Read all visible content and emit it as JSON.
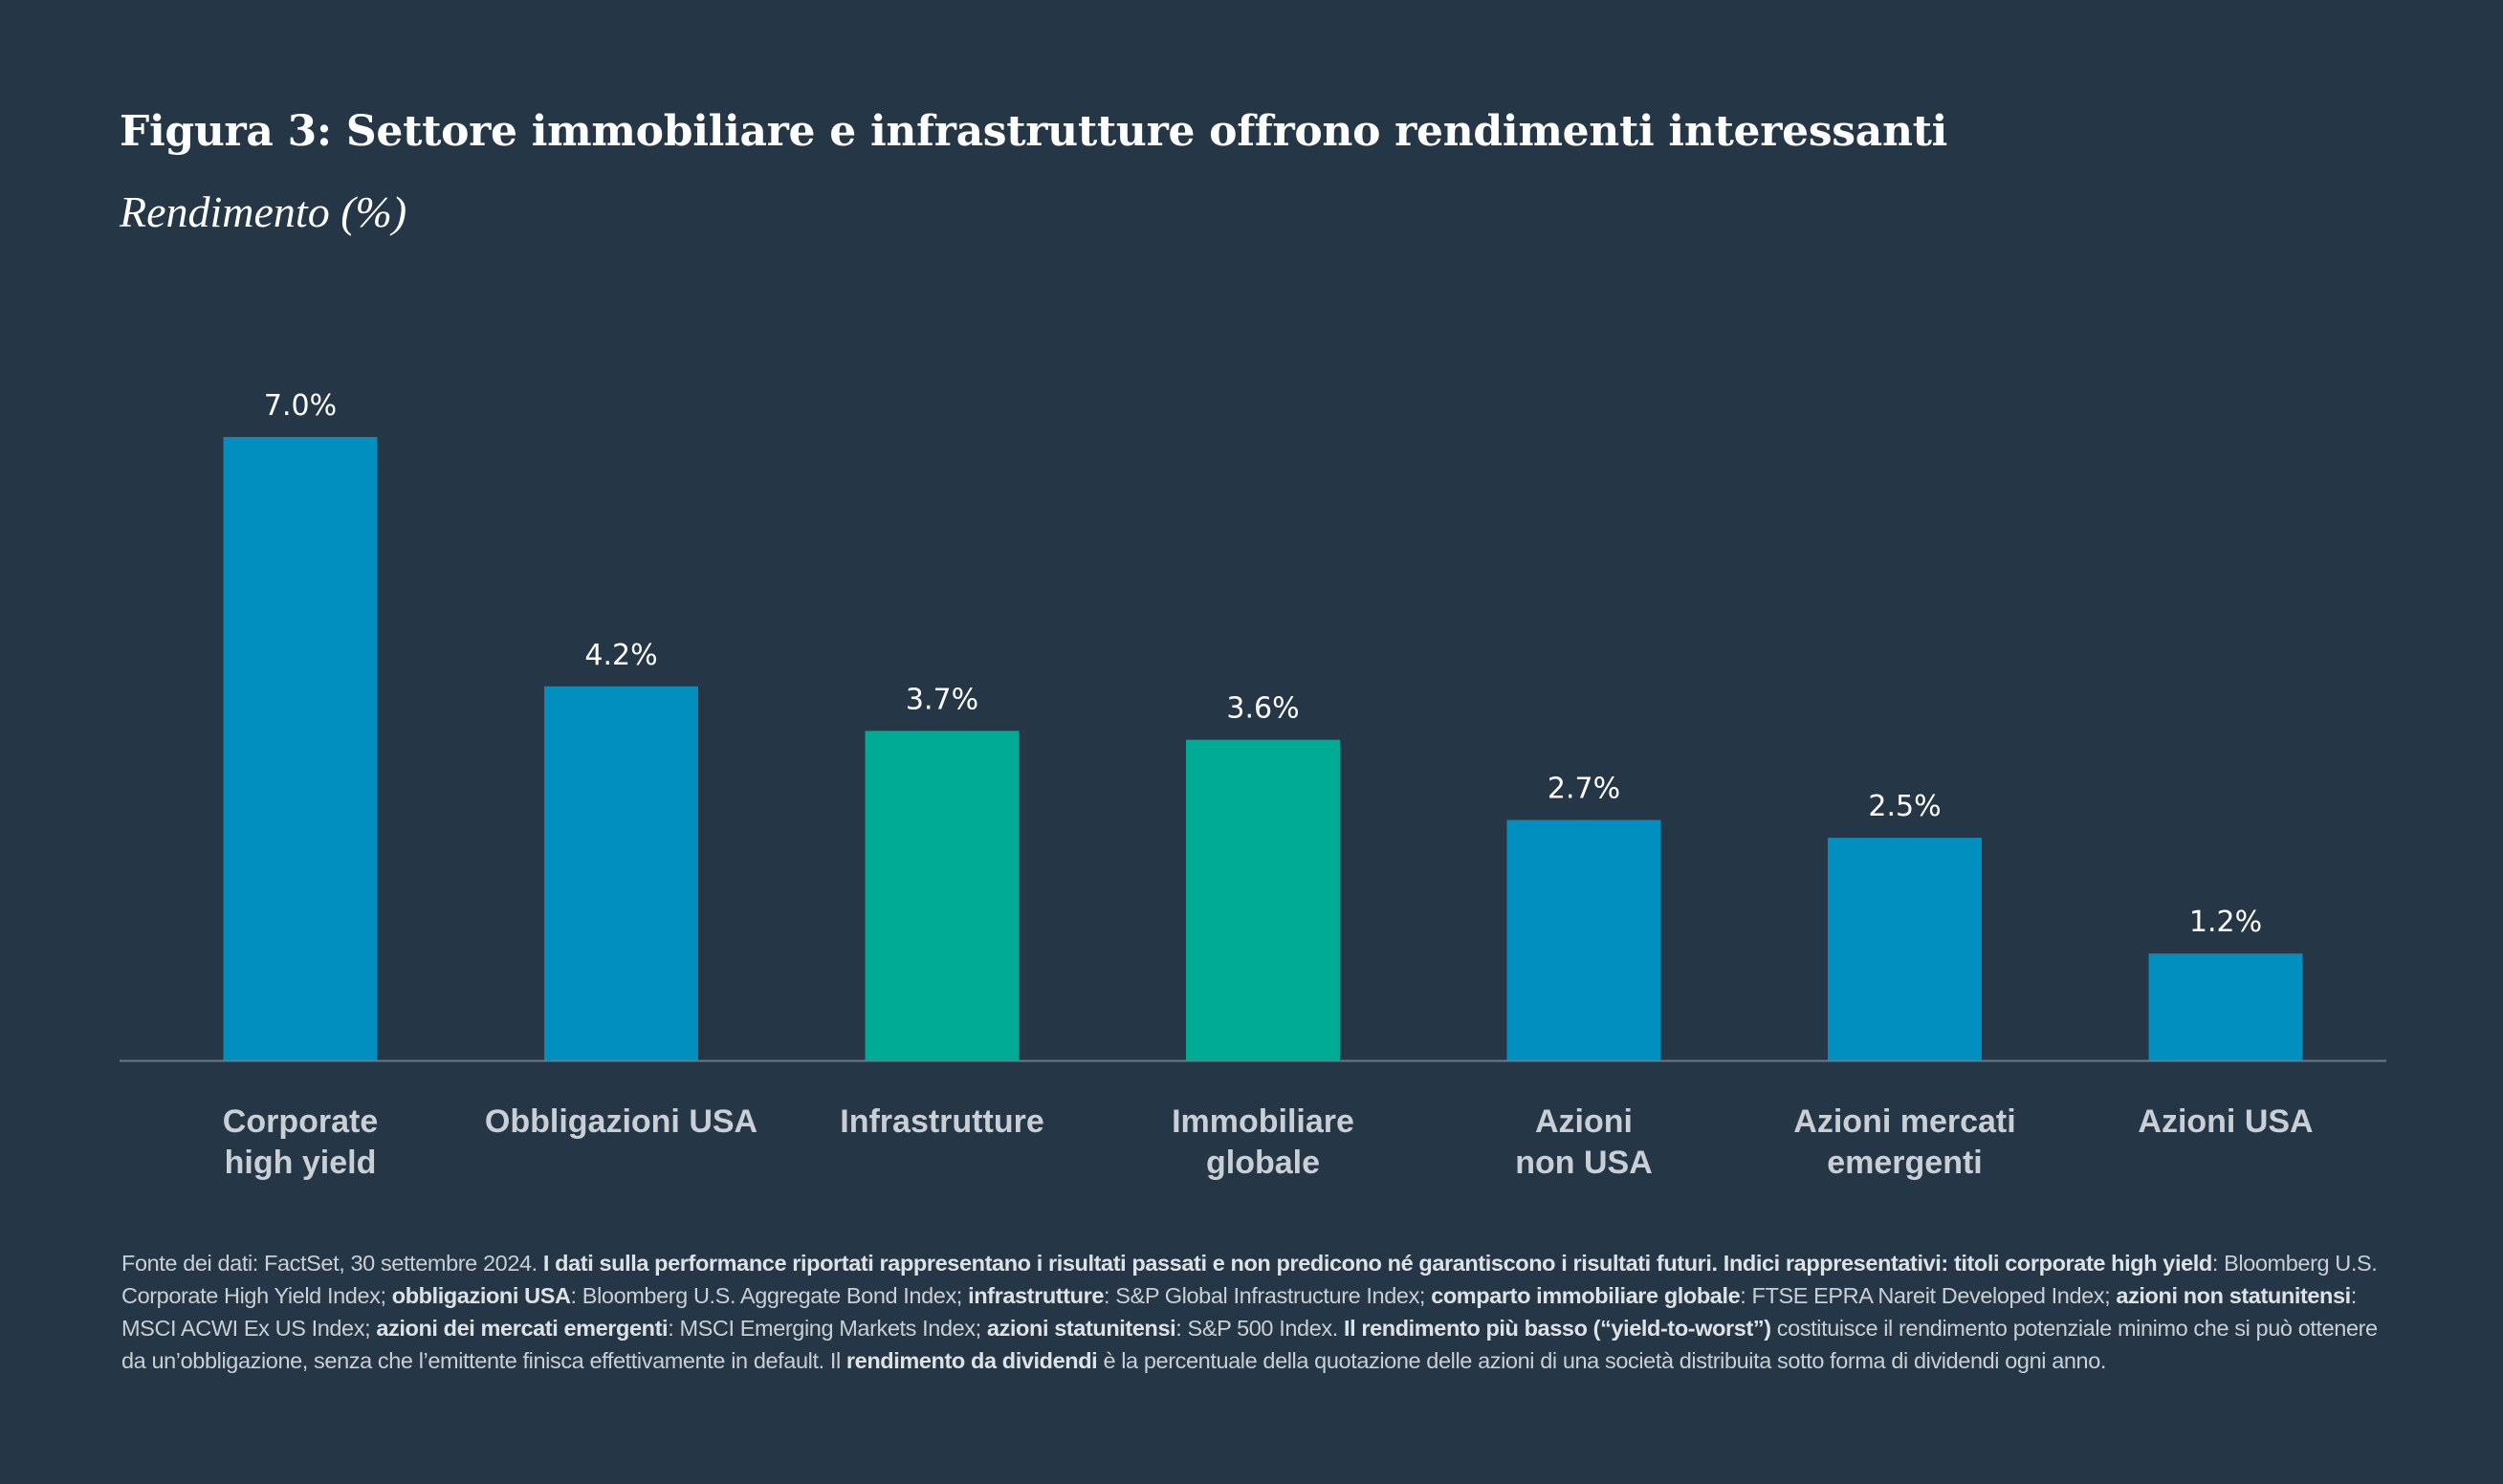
{
  "title": "Figura 3: Settore immobiliare e infrastrutture offrono rendimenti interessanti",
  "subtitle": "Rendimento (%)",
  "colors": {
    "background": "#253746",
    "blue": "#008fbe",
    "teal": "#00ab96",
    "axis": "#6b7a86",
    "label": "#c9cfd5"
  },
  "chart_data": {
    "type": "bar",
    "title": "Figura 3: Settore immobiliare e infrastrutture offrono rendimenti interessanti",
    "ylabel": "Rendimento (%)",
    "xlabel": "",
    "ylim": [
      0,
      7.0
    ],
    "grid": false,
    "categories": [
      [
        "Corporate",
        "high yield"
      ],
      [
        "Obbligazioni USA"
      ],
      [
        "Infrastrutture"
      ],
      [
        "Immobiliare",
        "globale"
      ],
      [
        "Azioni",
        "non USA"
      ],
      [
        "Azioni mercati",
        "emergenti"
      ],
      [
        "Azioni USA"
      ]
    ],
    "values": [
      7.0,
      4.2,
      3.7,
      3.6,
      2.7,
      2.5,
      1.2
    ],
    "value_labels": [
      "7.0%",
      "4.2%",
      "3.7%",
      "3.6%",
      "2.7%",
      "2.5%",
      "1.2%"
    ],
    "bar_colors": [
      "#008fbe",
      "#008fbe",
      "#00ab96",
      "#00ab96",
      "#008fbe",
      "#008fbe",
      "#008fbe"
    ]
  },
  "footnote": [
    {
      "t": "Fonte dei dati: FactSet, 30 settembre 2024. ",
      "b": false
    },
    {
      "t": "I dati sulla performance riportati rappresentano i risultati passati e non predicono né garantiscono i risultati futuri. Indici rappresentativi: titoli corporate high yield",
      "b": true
    },
    {
      "t": ": Bloomberg U.S. Corporate High Yield Index; ",
      "b": false
    },
    {
      "t": "obbligazioni USA",
      "b": true
    },
    {
      "t": ": Bloomberg U.S. Aggregate Bond Index; ",
      "b": false
    },
    {
      "t": "infrastrutture",
      "b": true
    },
    {
      "t": ": S&P Global Infrastructure Index; ",
      "b": false
    },
    {
      "t": "comparto immobiliare globale",
      "b": true
    },
    {
      "t": ": FTSE EPRA Nareit Developed Index; ",
      "b": false
    },
    {
      "t": "azioni non statunitensi",
      "b": true
    },
    {
      "t": ": MSCI ACWI Ex US Index; ",
      "b": false
    },
    {
      "t": "azioni dei mercati emergenti",
      "b": true
    },
    {
      "t": ": MSCI Emerging Markets Index; ",
      "b": false
    },
    {
      "t": "azioni statunitensi",
      "b": true
    },
    {
      "t": ": S&P 500 Index. ",
      "b": false
    },
    {
      "t": "Il rendimento più basso (“yield-to-worst”)",
      "b": true
    },
    {
      "t": " costituisce il rendimento potenziale minimo che si può ottenere da un’obbligazione, senza che l’emittente finisca effettivamente in default. Il ",
      "b": false
    },
    {
      "t": "rendimento da dividendi",
      "b": true
    },
    {
      "t": " è la percentuale della quotazione delle azioni di una società distribuita sotto forma di dividendi ogni anno.",
      "b": false
    }
  ]
}
